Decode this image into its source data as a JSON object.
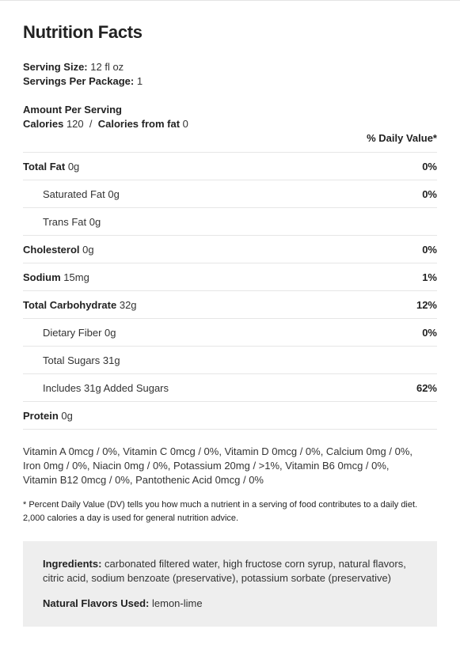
{
  "title": "Nutrition Facts",
  "serving": {
    "size_label": "Serving Size:",
    "size_value": "12 fl oz",
    "per_package_label": "Servings Per Package:",
    "per_package_value": "1"
  },
  "amount_per_serving": "Amount Per Serving",
  "calories": {
    "label": "Calories",
    "value": "120",
    "separator": "/",
    "fat_label": "Calories from fat",
    "fat_value": "0"
  },
  "daily_value_header": "% Daily Value*",
  "nutrients": [
    {
      "name": "Total Fat",
      "amount": "0g",
      "dv": "0%",
      "indent": false
    },
    {
      "name": "Saturated Fat",
      "amount": "0g",
      "dv": "0%",
      "indent": true
    },
    {
      "name": "Trans Fat",
      "amount": "0g",
      "dv": "",
      "indent": true
    },
    {
      "name": "Cholesterol",
      "amount": "0g",
      "dv": "0%",
      "indent": false
    },
    {
      "name": "Sodium",
      "amount": "15mg",
      "dv": "1%",
      "indent": false
    },
    {
      "name": "Total Carbohydrate",
      "amount": "32g",
      "dv": "12%",
      "indent": false
    },
    {
      "name": "Dietary Fiber",
      "amount": "0g",
      "dv": "0%",
      "indent": true
    },
    {
      "name": "Total Sugars",
      "amount": "31g",
      "dv": "",
      "indent": true
    },
    {
      "name": "Includes 31g Added Sugars",
      "amount": "",
      "dv": "62%",
      "indent": true
    },
    {
      "name": "Protein",
      "amount": "0g",
      "dv": "",
      "indent": false
    }
  ],
  "vitamins": {
    "line1": "Vitamin A 0mcg / 0%, Vitamin C 0mcg / 0%, Vitamin D 0mcg / 0%, Calcium 0mg / 0%,",
    "line2": "Iron 0mg / 0%, Niacin 0mg / 0%, Potassium 20mg / >1%, Vitamin B6 0mcg / 0%,",
    "line3": "Vitamin B12 0mcg / 0%, Pantothenic Acid 0mcg / 0%"
  },
  "footnote": {
    "line1": "* Percent Daily Value (DV) tells you how much a nutrient in a serving of food contributes to a daily diet.",
    "line2": "2,000 calories a day is used for general nutrition advice."
  },
  "ingredients": {
    "label": "Ingredients:",
    "text": "carbonated filtered water, high fructose corn syrup, natural flavors, citric acid, sodium benzoate (preservative), potassium sorbate (preservative)"
  },
  "natural_flavors": {
    "label": "Natural Flavors Used:",
    "value": "lemon-lime"
  },
  "colors": {
    "text": "#333333",
    "divider": "#e6e6e6",
    "ingredients_bg": "#eeeeee"
  }
}
